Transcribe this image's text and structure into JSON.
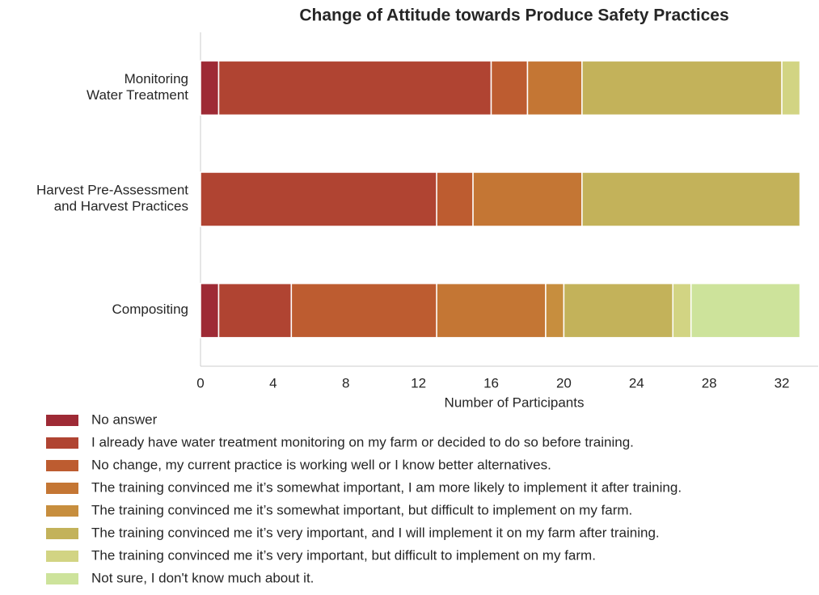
{
  "chart_data": {
    "type": "bar",
    "orientation": "horizontal",
    "stacked": true,
    "title": "Change of Attitude towards Produce Safety Practices",
    "x_label": "Number of Participants",
    "categories": [
      "Monitoring\nWater Treatment",
      "Harvest Pre-Assessment\nand Harvest Practices",
      "Compositing"
    ],
    "xlim": [
      0,
      34
    ],
    "xticks": [
      0,
      4,
      8,
      12,
      16,
      20,
      24,
      28,
      32
    ],
    "grid": false,
    "legend_position": "bottom",
    "series": [
      {
        "name": "No answer",
        "color": "#9e2a35",
        "values": [
          1,
          0,
          1
        ]
      },
      {
        "name": "I already have water treatment monitoring on my farm or decided to do so before training.",
        "color": "#b04432",
        "values": [
          15,
          13,
          4
        ]
      },
      {
        "name": "No change, my current practice is working well or I know better alternatives.",
        "color": "#bd5c30",
        "values": [
          2,
          2,
          8
        ]
      },
      {
        "name": "The training convinced me it’s somewhat important, I am more likely to implement it after training.",
        "color": "#c47634",
        "values": [
          3,
          6,
          6
        ]
      },
      {
        "name": "The training convinced me it’s somewhat important, but difficult to implement on my farm.",
        "color": "#c78e3e",
        "values": [
          0,
          0,
          1
        ]
      },
      {
        "name": "The training convinced me it’s very important, and I will implement it on my farm after training.",
        "color": "#c3b25a",
        "values": [
          11,
          12,
          6
        ]
      },
      {
        "name": "The training convinced me it’s very important, but difficult to implement on my farm.",
        "color": "#d2d483",
        "values": [
          1,
          0,
          1
        ]
      },
      {
        "name": "Not sure, I don't know much about it.",
        "color": "#cde39b",
        "values": [
          0,
          0,
          6
        ]
      }
    ]
  }
}
